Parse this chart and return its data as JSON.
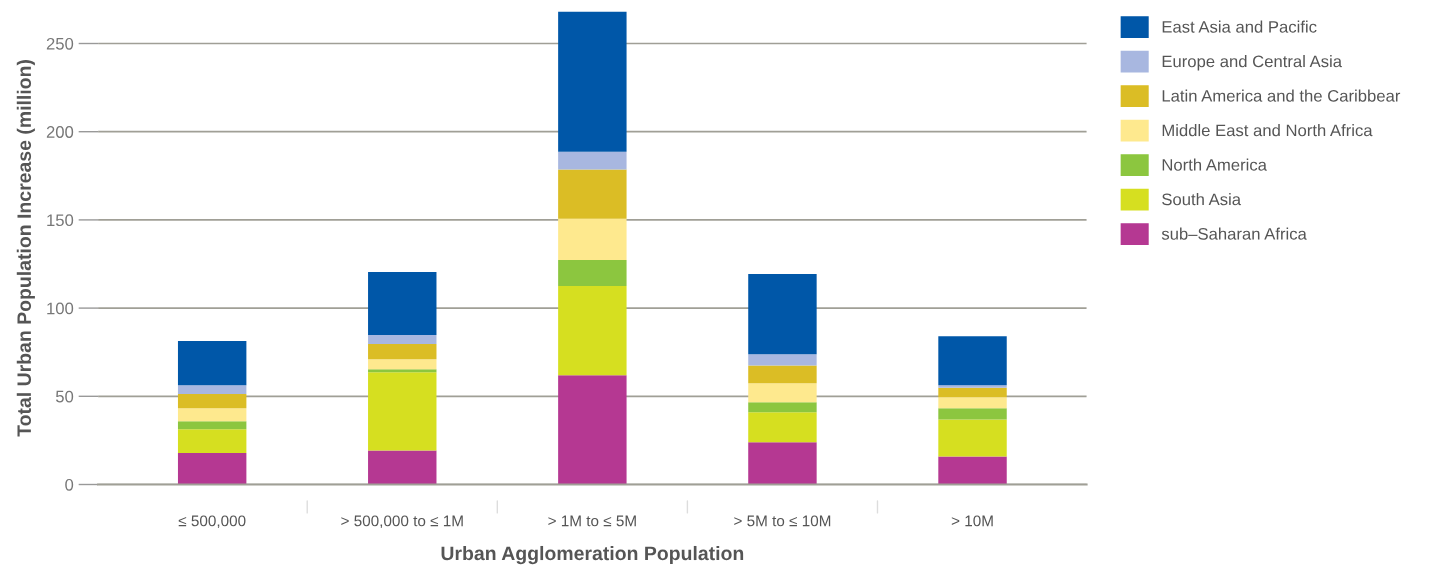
{
  "chart_data": {
    "type": "bar",
    "stacked": true,
    "xlabel": "Urban Agglomeration Population",
    "ylabel": "Total Urban Population Increase (million)",
    "categories": [
      "≤ 500,000",
      "> 500,000 to ≤ 1M",
      "> 1M to ≤ 5M",
      "> 5M to ≤ 10M",
      "> 10M"
    ],
    "series": [
      {
        "name": "sub–Saharan Africa",
        "color": "#b53892",
        "values": [
          17.8,
          19.3,
          61.9,
          23.9,
          15.9
        ]
      },
      {
        "name": "South Asia",
        "color": "#d6df20",
        "values": [
          13.5,
          44.3,
          50.6,
          17.0,
          21.0
        ]
      },
      {
        "name": "North America",
        "color": "#8cc63f",
        "values": [
          4.5,
          1.7,
          14.8,
          5.7,
          6.3
        ]
      },
      {
        "name": "Middle East and North Africa",
        "color": "#fee98e",
        "values": [
          7.4,
          5.7,
          23.3,
          10.8,
          6.2
        ]
      },
      {
        "name": "Latin America and the Caribbear",
        "color": "#dbbd25",
        "values": [
          8.1,
          8.7,
          28.0,
          10.0,
          5.5
        ]
      },
      {
        "name": "Europe and Central Asia",
        "color": "#a8b7e0",
        "values": [
          5.0,
          5.0,
          10.0,
          6.5,
          1.4
        ]
      },
      {
        "name": "East Asia and Pacific",
        "color": "#0057a8",
        "values": [
          25.0,
          35.8,
          79.6,
          45.4,
          27.8
        ]
      }
    ],
    "ylim": [
      0,
      268.2
    ],
    "yticks": [
      0,
      50,
      100,
      150,
      200,
      250
    ],
    "grid": "y",
    "legend": "top right"
  }
}
